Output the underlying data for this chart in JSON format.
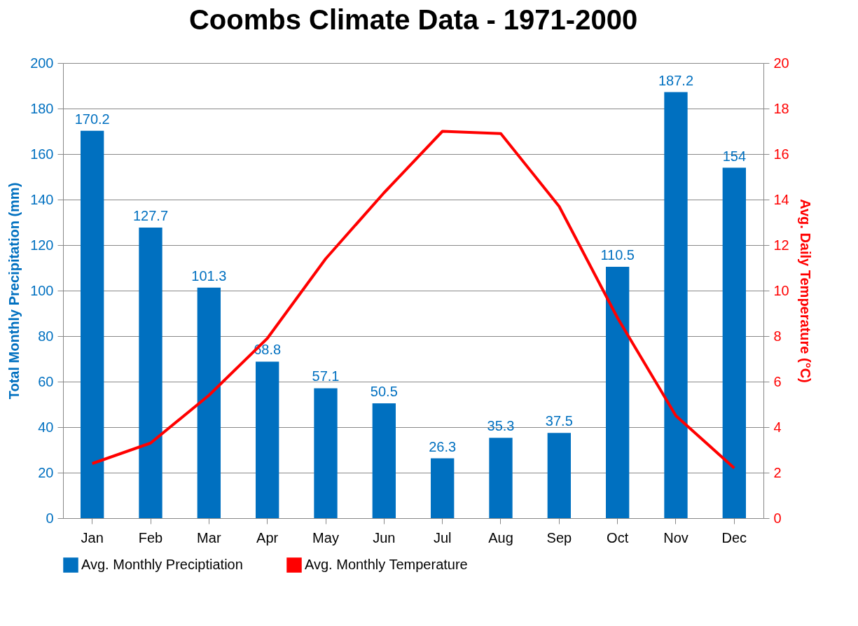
{
  "chart_data": {
    "type": "bar",
    "title": "Coombs Climate Data - 1971-2000",
    "categories": [
      "Jan",
      "Feb",
      "Mar",
      "Apr",
      "May",
      "Jun",
      "Jul",
      "Aug",
      "Sep",
      "Oct",
      "Nov",
      "Dec"
    ],
    "ylabel": "Total Monthly Precipitation (mm)",
    "y2label": "Avg. Daily Temperature (°C)",
    "ylim": [
      0,
      200
    ],
    "yticks": [
      0,
      20,
      40,
      60,
      80,
      100,
      120,
      140,
      160,
      180,
      200
    ],
    "y2lim": [
      0,
      20
    ],
    "y2ticks": [
      0,
      2,
      4,
      6,
      8,
      10,
      12,
      14,
      16,
      18,
      20
    ],
    "grid": "y",
    "legend": "bottom",
    "series": [
      {
        "name": "Avg. Monthly Preciptiation",
        "color": "#0070c0",
        "values": [
          170.2,
          127.7,
          101.3,
          68.8,
          57.1,
          50.5,
          26.3,
          35.3,
          37.5,
          110.5,
          187.2,
          154
        ],
        "value_labels": [
          "170.2",
          "127.7",
          "101.3",
          "68.8",
          "57.1",
          "50.5",
          "26.3",
          "35.3",
          "37.5",
          "110.5",
          "187.2",
          "154"
        ]
      },
      {
        "name": "Avg. Monthly Temperature",
        "type": "line",
        "axis": "y2",
        "color": "#ff0000",
        "values": [
          2.4,
          3.3,
          5.4,
          7.9,
          11.4,
          14.3,
          17.0,
          16.9,
          13.7,
          8.8,
          4.5,
          2.2
        ]
      }
    ]
  }
}
